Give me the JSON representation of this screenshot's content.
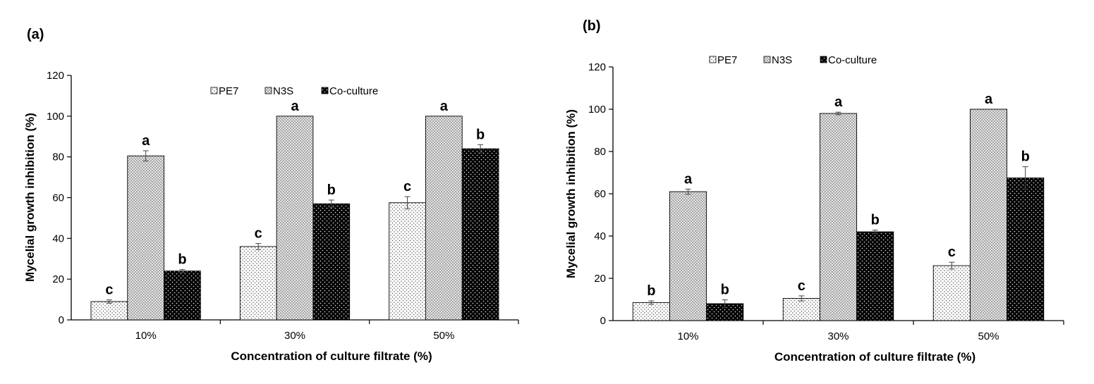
{
  "chart_data": [
    {
      "type": "bar",
      "panel_label": "(a)",
      "categories": [
        "10%",
        "30%",
        "50%"
      ],
      "series": [
        {
          "name": "PE7",
          "values": [
            9,
            36,
            57.5
          ],
          "errors": [
            0.8,
            1.5,
            3
          ],
          "letters": [
            "c",
            "c",
            "c"
          ]
        },
        {
          "name": "N3S",
          "values": [
            80.5,
            100,
            100
          ],
          "errors": [
            2.5,
            0,
            0
          ],
          "letters": [
            "a",
            "a",
            "a"
          ]
        },
        {
          "name": "Co-culture",
          "values": [
            24,
            57,
            84
          ],
          "errors": [
            0.7,
            1.8,
            2
          ],
          "letters": [
            "b",
            "b",
            "b"
          ]
        }
      ],
      "xlabel": "Concentration of culture filtrate (%)",
      "ylabel": "Mycelial growth inhibition (%)",
      "ylim": [
        0,
        120
      ],
      "yticks": [
        0,
        20,
        40,
        60,
        80,
        100,
        120
      ],
      "legend": "top-center",
      "grid": false
    },
    {
      "type": "bar",
      "panel_label": "(b)",
      "categories": [
        "10%",
        "30%",
        "50%"
      ],
      "series": [
        {
          "name": "PE7",
          "values": [
            8.5,
            10.5,
            26
          ],
          "errors": [
            0.8,
            1.2,
            1.6
          ],
          "letters": [
            "b",
            "c",
            "c"
          ]
        },
        {
          "name": "N3S",
          "values": [
            61,
            98,
            100
          ],
          "errors": [
            1.2,
            0.6,
            0
          ],
          "letters": [
            "a",
            "a",
            "a"
          ]
        },
        {
          "name": "Co-culture",
          "values": [
            8,
            42,
            67.5
          ],
          "errors": [
            1.8,
            0.8,
            5.3
          ],
          "letters": [
            "b",
            "b",
            "b"
          ]
        }
      ],
      "xlabel": "Concentration of culture filtrate (%)",
      "ylabel": "Mycelial growth inhibition (%)",
      "ylim": [
        0,
        120
      ],
      "yticks": [
        0,
        20,
        40,
        60,
        80,
        100,
        120
      ],
      "legend": "top-center",
      "grid": false
    }
  ]
}
